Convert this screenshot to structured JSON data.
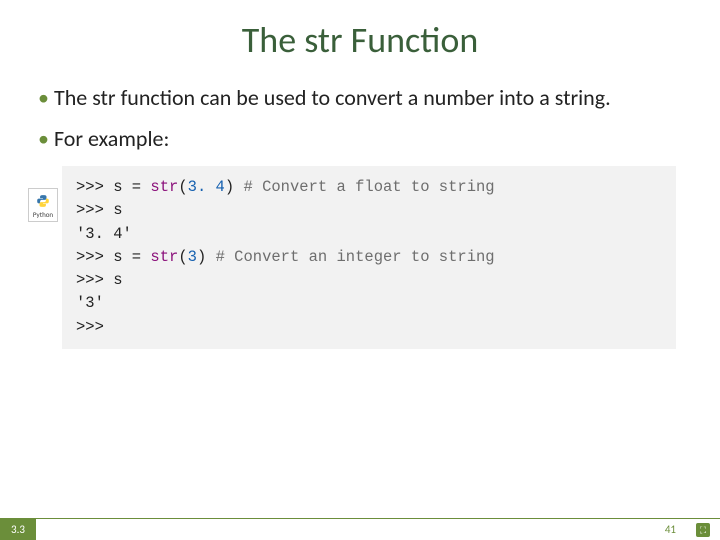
{
  "slide": {
    "title": "The str Function",
    "bullets": [
      "The str function can be used to convert a number into a string.",
      "For example:"
    ],
    "badge_label": "Python",
    "section_number": "3.3",
    "page_number": "41"
  },
  "code": {
    "font_family": "Courier New",
    "font_size_pt": 12,
    "background_color": "#f2f2f2",
    "colors": {
      "default": "#222222",
      "function": "#8a0f7a",
      "number": "#1560b0",
      "comment": "#6e6e6e"
    },
    "lines": [
      [
        {
          "t": ">>> s = ",
          "c": "default"
        },
        {
          "t": "str",
          "c": "function"
        },
        {
          "t": "(",
          "c": "default"
        },
        {
          "t": "3. 4",
          "c": "number"
        },
        {
          "t": ") ",
          "c": "default"
        },
        {
          "t": "# Convert a float to string",
          "c": "comment"
        }
      ],
      [
        {
          "t": ">>> s",
          "c": "default"
        }
      ],
      [
        {
          "t": "'3. 4'",
          "c": "default"
        }
      ],
      [
        {
          "t": ">>> s = ",
          "c": "default"
        },
        {
          "t": "str",
          "c": "function"
        },
        {
          "t": "(",
          "c": "default"
        },
        {
          "t": "3",
          "c": "number"
        },
        {
          "t": ") ",
          "c": "default"
        },
        {
          "t": "# Convert an integer to string",
          "c": "comment"
        }
      ],
      [
        {
          "t": ">>> s",
          "c": "default"
        }
      ],
      [
        {
          "t": "'3'",
          "c": "default"
        }
      ],
      [
        {
          "t": ">>>",
          "c": "default"
        }
      ]
    ]
  },
  "styling": {
    "accent_color": "#6b8e3a",
    "title_color": "#3a5f3a",
    "title_fontsize": 36,
    "body_fontsize": 22,
    "slide_width": 720,
    "slide_height": 540,
    "background_color": "#ffffff"
  }
}
